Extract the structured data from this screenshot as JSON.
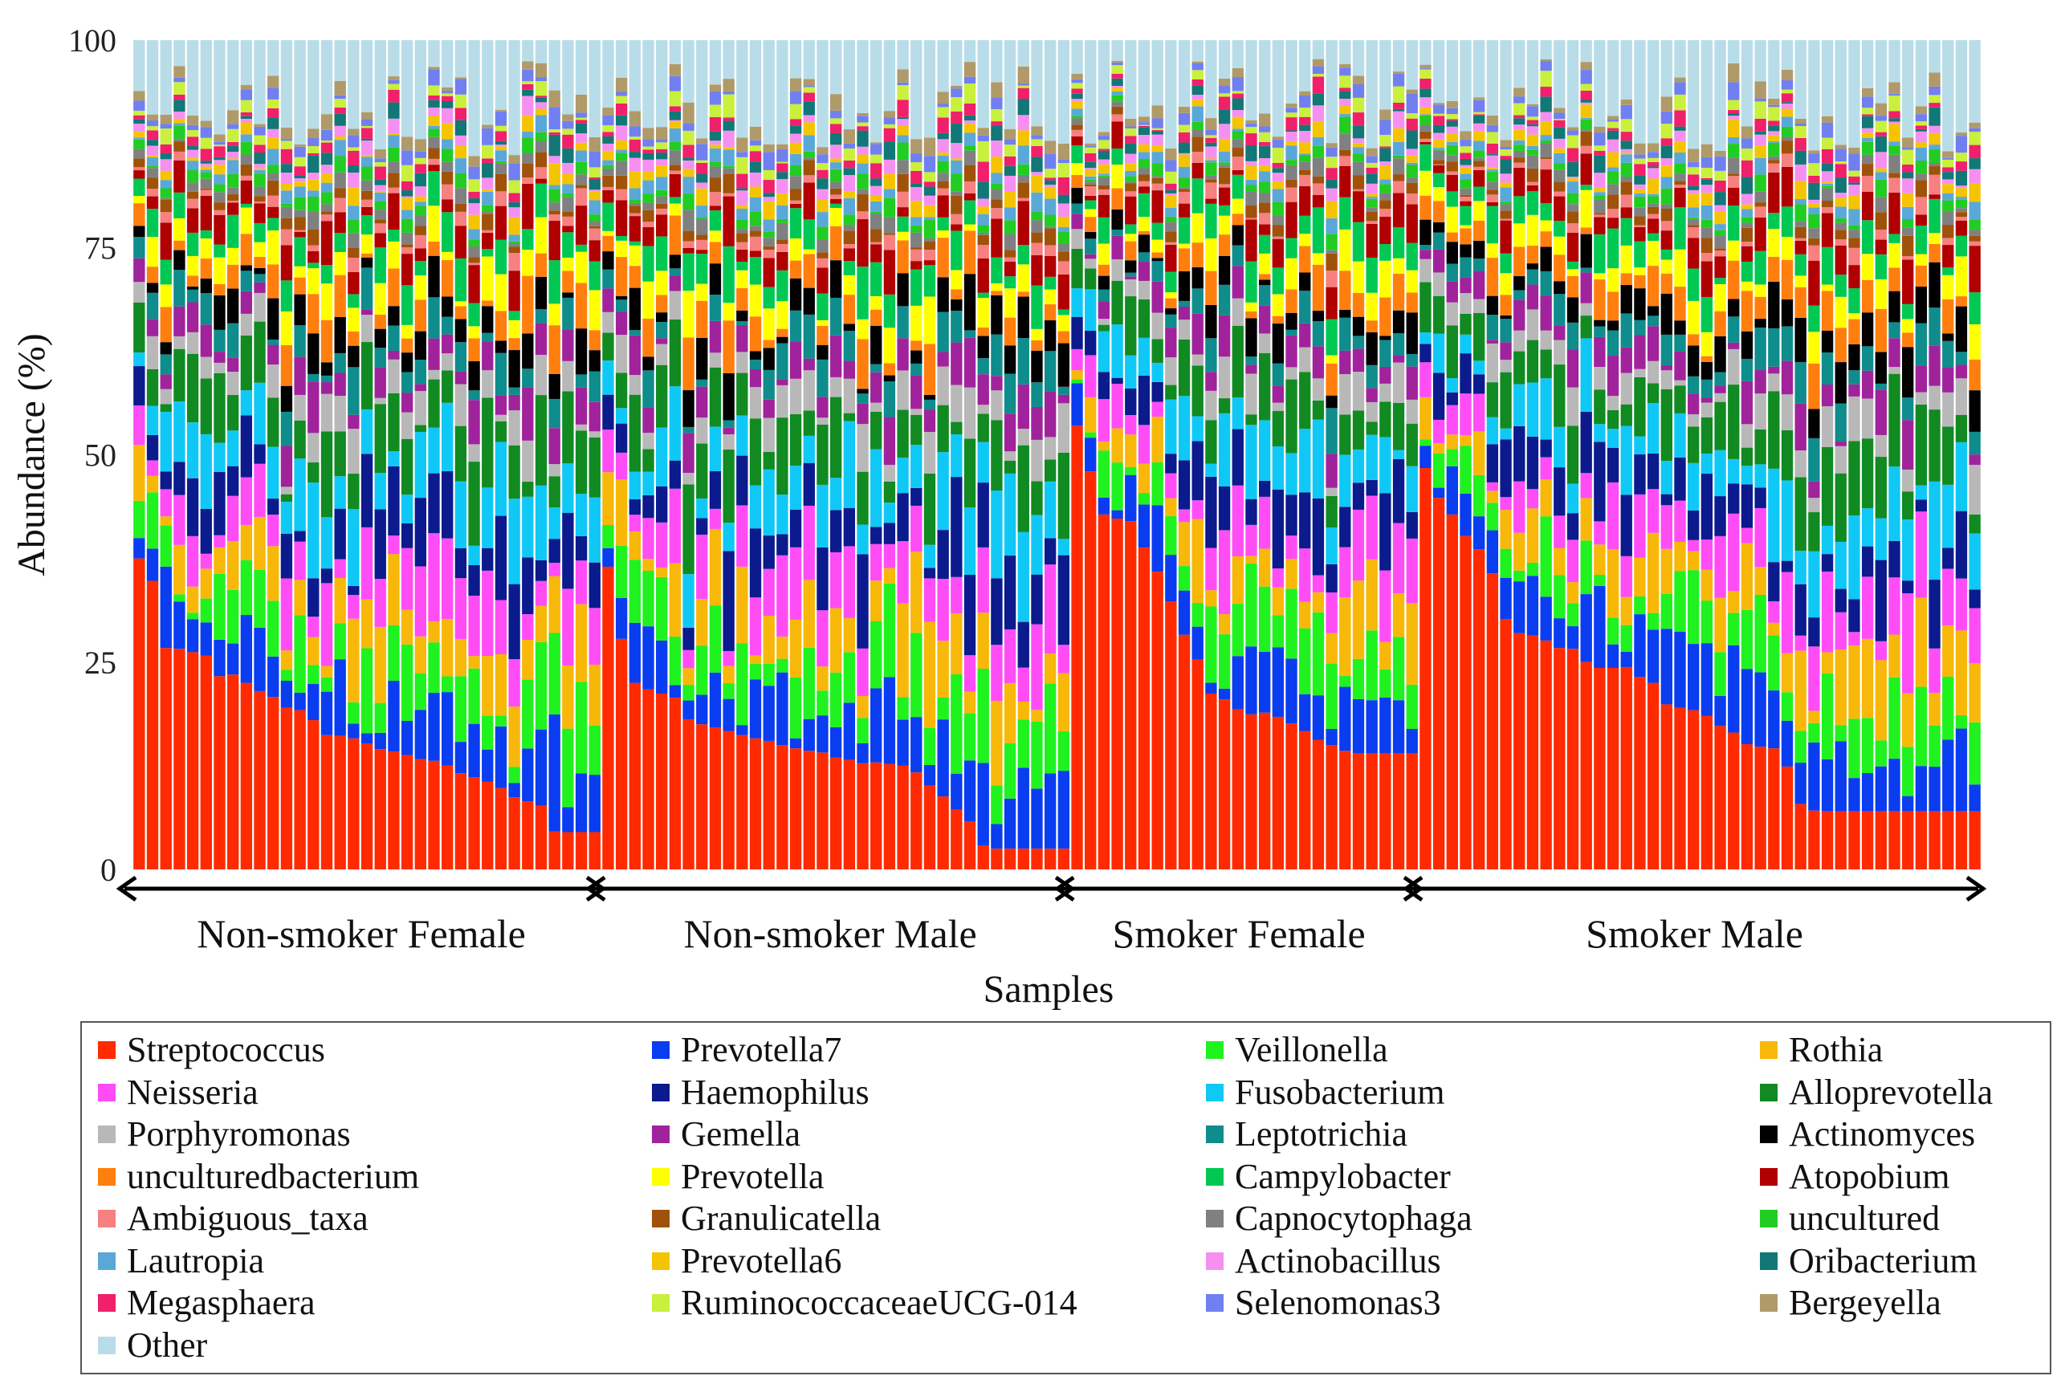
{
  "chart_data": {
    "type": "bar",
    "stacked": true,
    "percent": true,
    "ylabel": "Abundance (%)",
    "xlabel": "Samples",
    "ylim": [
      0,
      100
    ],
    "yticks": [
      0,
      25,
      50,
      75,
      100
    ],
    "groups": [
      {
        "name": "Non-smoker Female",
        "n": 35
      },
      {
        "name": "Non-smoker Male",
        "n": 35
      },
      {
        "name": "Smoker Female",
        "n": 26
      },
      {
        "name": "Smoker Male",
        "n": 42
      }
    ],
    "streptococcus_values": [
      [
        37.5,
        34.8,
        26.7,
        26.6,
        26.2,
        25.8,
        23.3,
        23.5,
        22.5,
        21.5,
        20.8,
        19.5,
        19.2,
        18.0,
        16.2,
        16.1,
        15.8,
        15.2,
        14.5,
        14.2,
        13.8,
        13.3,
        13.1,
        12.5,
        11.6,
        11.1,
        10.6,
        9.8,
        8.7,
        8.2,
        7.7,
        4.6,
        4.5,
        4.5,
        4.5
      ],
      [
        36.5,
        27.8,
        22.5,
        21.7,
        21.2,
        20.7,
        18.1,
        17.5,
        17.1,
        16.7,
        16.2,
        15.8,
        15.5,
        15.0,
        14.6,
        14.3,
        14.1,
        13.5,
        13.2,
        12.8,
        12.9,
        12.7,
        12.5,
        11.7,
        10.1,
        8.8,
        7.2,
        5.8,
        2.9,
        2.5,
        2.5,
        2.5,
        2.5,
        2.5,
        2.5
      ],
      [
        53.5,
        48.0,
        42.8,
        42.3,
        42.0,
        38.8,
        35.9,
        32.3,
        28.3,
        25.3,
        21.2,
        20.5,
        19.3,
        18.7,
        18.9,
        18.4,
        17.6,
        16.7,
        15.6,
        15.0,
        14.3,
        14.0,
        14.0,
        14.0,
        14.0,
        14.0
      ],
      [
        48.4,
        44.8,
        42.8,
        40.2,
        38.6,
        35.7,
        30.2,
        28.5,
        28.2,
        27.6,
        26.7,
        26.6,
        25.0,
        24.3,
        24.3,
        24.4,
        23.2,
        22.5,
        19.9,
        19.5,
        19.2,
        18.5,
        17.3,
        16.5,
        15.1,
        14.8,
        14.6,
        12.4,
        7.9,
        7.1,
        7.0,
        7.0,
        7.0,
        7.0,
        7.0,
        7.0,
        7.0,
        7.0,
        7.0,
        7.0,
        7.0,
        7.0
      ]
    ],
    "series": [
      {
        "name": "Streptococcus",
        "color": "#ff2a00"
      },
      {
        "name": "Prevotella7",
        "color": "#0a3cf0"
      },
      {
        "name": "Veillonella",
        "color": "#1ff21f"
      },
      {
        "name": "Rothia",
        "color": "#f7b80a"
      },
      {
        "name": "Neisseria",
        "color": "#ff4df5"
      },
      {
        "name": "Haemophilus",
        "color": "#0b1a8c"
      },
      {
        "name": "Fusobacterium",
        "color": "#10c8f5"
      },
      {
        "name": "Alloprevotella",
        "color": "#118a22"
      },
      {
        "name": "Porphyromonas",
        "color": "#b8b8b8"
      },
      {
        "name": "Gemella",
        "color": "#a0239c"
      },
      {
        "name": "Leptotrichia",
        "color": "#0f8c8c"
      },
      {
        "name": "Actinomyces",
        "color": "#000000"
      },
      {
        "name": "unculturedbacterium",
        "color": "#ff7f0e"
      },
      {
        "name": "Prevotella",
        "color": "#ffff00"
      },
      {
        "name": "Campylobacter",
        "color": "#00c853"
      },
      {
        "name": "Atopobium",
        "color": "#b00000"
      },
      {
        "name": "Ambiguous_taxa",
        "color": "#f78080"
      },
      {
        "name": "Granulicatella",
        "color": "#a0520a"
      },
      {
        "name": "Capnocytophaga",
        "color": "#808080"
      },
      {
        "name": "uncultured",
        "color": "#22cc22"
      },
      {
        "name": "Lautropia",
        "color": "#5aa8d8"
      },
      {
        "name": "Prevotella6",
        "color": "#f5c400"
      },
      {
        "name": "Actinobacillus",
        "color": "#f590f0"
      },
      {
        "name": "Oribacterium",
        "color": "#117777"
      },
      {
        "name": "Megasphaera",
        "color": "#f0206a"
      },
      {
        "name": "RuminococcaceaeUCG-014",
        "color": "#c8f03c"
      },
      {
        "name": "Selenomonas3",
        "color": "#7080f0"
      },
      {
        "name": "Bergeyella",
        "color": "#b09a6a"
      },
      {
        "name": "Other",
        "color": "#b8dde8"
      }
    ],
    "legend_position": "bottom",
    "legend_columns": 4
  }
}
